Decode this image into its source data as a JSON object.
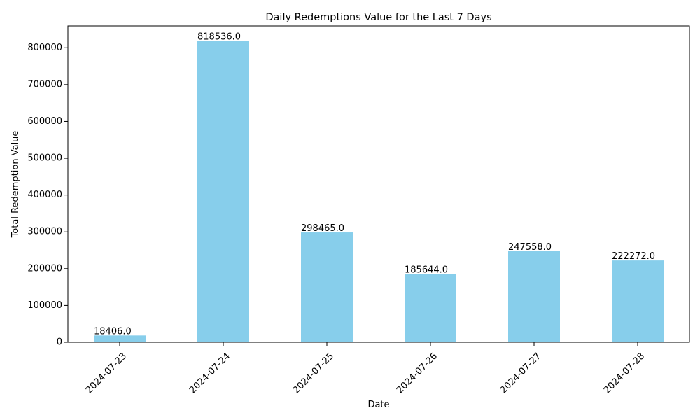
{
  "chart_data": {
    "type": "bar",
    "title": "Daily Redemptions Value for the Last 7 Days",
    "xlabel": "Date",
    "ylabel": "Total Redemption Value",
    "categories": [
      "2024-07-23",
      "2024-07-24",
      "2024-07-25",
      "2024-07-26",
      "2024-07-27",
      "2024-07-28"
    ],
    "values": [
      18406.0,
      818536.0,
      298465.0,
      185644.0,
      247558.0,
      222272.0
    ],
    "data_labels": [
      "18406.0",
      "818536.0",
      "298465.0",
      "185644.0",
      "247558.0",
      "222272.0"
    ],
    "ylim": [
      0,
      859463
    ],
    "yticks": [
      0,
      100000,
      200000,
      300000,
      400000,
      500000,
      600000,
      700000,
      800000
    ],
    "ytick_labels": [
      "0",
      "100000",
      "200000",
      "300000",
      "400000",
      "500000",
      "600000",
      "700000",
      "800000"
    ],
    "bar_color": "#87ceeb",
    "grid": false,
    "legend": "none"
  }
}
